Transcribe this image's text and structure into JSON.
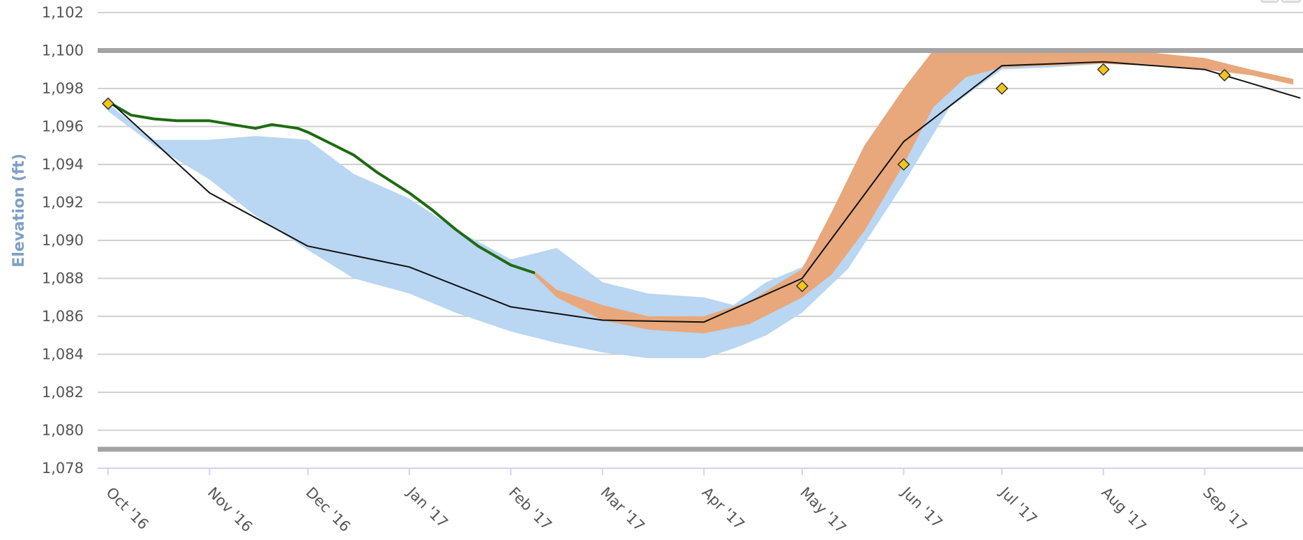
{
  "chart_data": {
    "type": "line",
    "ylabel": "Elevation (ft)",
    "xlabel": "",
    "ylim": [
      1078,
      1102
    ],
    "y_ticks": [
      1078,
      1080,
      1082,
      1084,
      1086,
      1088,
      1090,
      1092,
      1094,
      1096,
      1098,
      1100,
      1102
    ],
    "y_tick_labels": [
      "1,078",
      "1,080",
      "1,082",
      "1,084",
      "1,086",
      "1,088",
      "1,090",
      "1,092",
      "1,094",
      "1,096",
      "1,098",
      "1,100",
      "1,102"
    ],
    "xlim": [
      "2016-10-01",
      "2017-09-30"
    ],
    "x_ticks": [
      "2016-10-01",
      "2016-11-01",
      "2016-12-01",
      "2017-01-01",
      "2017-02-01",
      "2017-03-01",
      "2017-04-01",
      "2017-05-01",
      "2017-06-01",
      "2017-07-01",
      "2017-08-01",
      "2017-09-01"
    ],
    "x_tick_labels": [
      "Oct '16",
      "Nov '16",
      "Dec '16",
      "Jan '17",
      "Feb '17",
      "Mar '17",
      "Apr '17",
      "May '17",
      "Jun '17",
      "Jul '17",
      "Aug '17",
      "Sep '17"
    ],
    "grid": true,
    "limit_lines": [
      1100,
      1079
    ],
    "colors": {
      "blue_band": "#b9d6f2",
      "orange_band": "#e8a87c",
      "green_line": "#1e6b12",
      "black_line": "#111111",
      "diamond_fill": "#f5c518",
      "diamond_stroke": "#333333",
      "limit_line": "#a3a3a3",
      "grid": "#d0d0d0",
      "axis_title": "#7f9fc6"
    },
    "series": [
      {
        "type": "arearange",
        "color": "#b9d6f2",
        "x": [
          "2016-10-01",
          "2016-10-15",
          "2016-11-01",
          "2016-11-15",
          "2016-12-01",
          "2016-12-15",
          "2017-01-01",
          "2017-01-15",
          "2017-02-01",
          "2017-02-15",
          "2017-03-01",
          "2017-03-15",
          "2017-04-01",
          "2017-04-10",
          "2017-04-20",
          "2017-05-01",
          "2017-05-15",
          "2017-06-01",
          "2017-06-15",
          "2017-07-01",
          "2017-07-15",
          "2017-08-01",
          "2017-08-15",
          "2017-09-01",
          "2017-09-15"
        ],
        "low": [
          1096.8,
          1095.0,
          1093.2,
          1091.3,
          1089.5,
          1088.0,
          1087.2,
          1086.2,
          1085.2,
          1084.6,
          1084.1,
          1083.8,
          1083.8,
          1084.3,
          1085.0,
          1086.2,
          1088.5,
          1093.0,
          1097.0,
          1099.0,
          1099.1,
          1099.3,
          1099.2,
          1099.0,
          1098.7
        ],
        "high": [
          1097.2,
          1095.3,
          1095.3,
          1095.5,
          1095.3,
          1093.5,
          1092.2,
          1090.6,
          1089.0,
          1089.6,
          1087.8,
          1087.2,
          1087.0,
          1086.6,
          1087.8,
          1088.6,
          1092.0,
          1096.5,
          1099.0,
          1099.7,
          1099.8,
          1099.9,
          1099.8,
          1099.5,
          1099.0
        ]
      },
      {
        "type": "arearange",
        "color": "#e8a87c",
        "x": [
          "2017-02-08",
          "2017-02-15",
          "2017-03-01",
          "2017-03-15",
          "2017-04-01",
          "2017-04-15",
          "2017-05-01",
          "2017-05-10",
          "2017-05-20",
          "2017-06-01",
          "2017-06-10",
          "2017-06-20",
          "2017-07-01",
          "2017-07-15",
          "2017-08-01",
          "2017-08-15",
          "2017-09-01",
          "2017-09-15",
          "2017-09-28"
        ],
        "low": [
          1088.2,
          1087.0,
          1085.8,
          1085.3,
          1085.1,
          1085.6,
          1087.0,
          1088.2,
          1090.5,
          1094.0,
          1097.0,
          1098.6,
          1099.1,
          1099.2,
          1099.3,
          1099.2,
          1099.0,
          1098.7,
          1098.2
        ],
        "high": [
          1088.4,
          1087.4,
          1086.6,
          1086.0,
          1086.0,
          1086.8,
          1088.5,
          1091.5,
          1095.0,
          1098.0,
          1100.0,
          1100.0,
          1100.0,
          1100.0,
          1100.0,
          1099.9,
          1099.6,
          1099.0,
          1098.5
        ]
      },
      {
        "type": "line",
        "color": "#1e6b12",
        "x": [
          "2016-10-01",
          "2016-10-08",
          "2016-10-15",
          "2016-10-22",
          "2016-11-01",
          "2016-11-08",
          "2016-11-15",
          "2016-11-20",
          "2016-11-28",
          "2016-12-01",
          "2016-12-08",
          "2016-12-15",
          "2016-12-22",
          "2017-01-01",
          "2017-01-08",
          "2017-01-15",
          "2017-01-22",
          "2017-02-01",
          "2017-02-08"
        ],
        "y": [
          1097.3,
          1096.6,
          1096.4,
          1096.3,
          1096.3,
          1096.1,
          1095.9,
          1096.1,
          1095.9,
          1095.7,
          1095.1,
          1094.5,
          1093.6,
          1092.5,
          1091.6,
          1090.6,
          1089.7,
          1088.7,
          1088.3
        ]
      },
      {
        "type": "line",
        "color": "#111111",
        "x": [
          "2016-10-01",
          "2016-11-01",
          "2016-12-01",
          "2017-01-01",
          "2017-02-01",
          "2017-03-01",
          "2017-04-01",
          "2017-05-01",
          "2017-06-01",
          "2017-07-01",
          "2017-08-01",
          "2017-09-01",
          "2017-09-30"
        ],
        "y": [
          1097.4,
          1092.5,
          1089.7,
          1088.6,
          1086.5,
          1085.8,
          1085.7,
          1088.0,
          1095.2,
          1099.2,
          1099.4,
          1099.0,
          1097.5
        ]
      },
      {
        "type": "scatter",
        "marker": "diamond",
        "color": "#f5c518",
        "x": [
          "2016-10-01",
          "2017-05-01",
          "2017-06-01",
          "2017-07-01",
          "2017-08-01",
          "2017-09-07"
        ],
        "y": [
          1097.2,
          1087.6,
          1094.0,
          1098.0,
          1099.0,
          1098.7
        ]
      }
    ]
  }
}
